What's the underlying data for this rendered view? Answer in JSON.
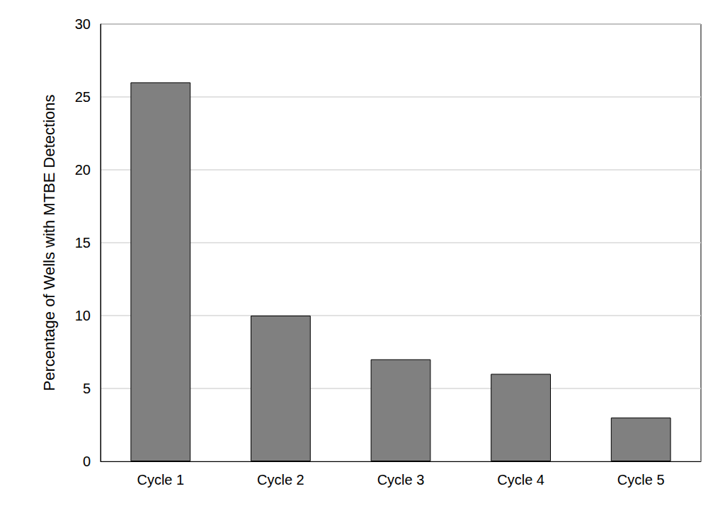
{
  "chart_data": {
    "type": "bar",
    "y_label": "Percentage of Wells with MTBE Detections",
    "categories": [
      "Cycle 1",
      "Cycle 2",
      "Cycle 3",
      "Cycle 4",
      "Cycle 5"
    ],
    "values": [
      26,
      10,
      7,
      6,
      3
    ],
    "color": "#808080",
    "ylim": [
      0,
      30
    ],
    "yticks": [
      0,
      5,
      10,
      15,
      20,
      25,
      30
    ],
    "grid": true
  }
}
